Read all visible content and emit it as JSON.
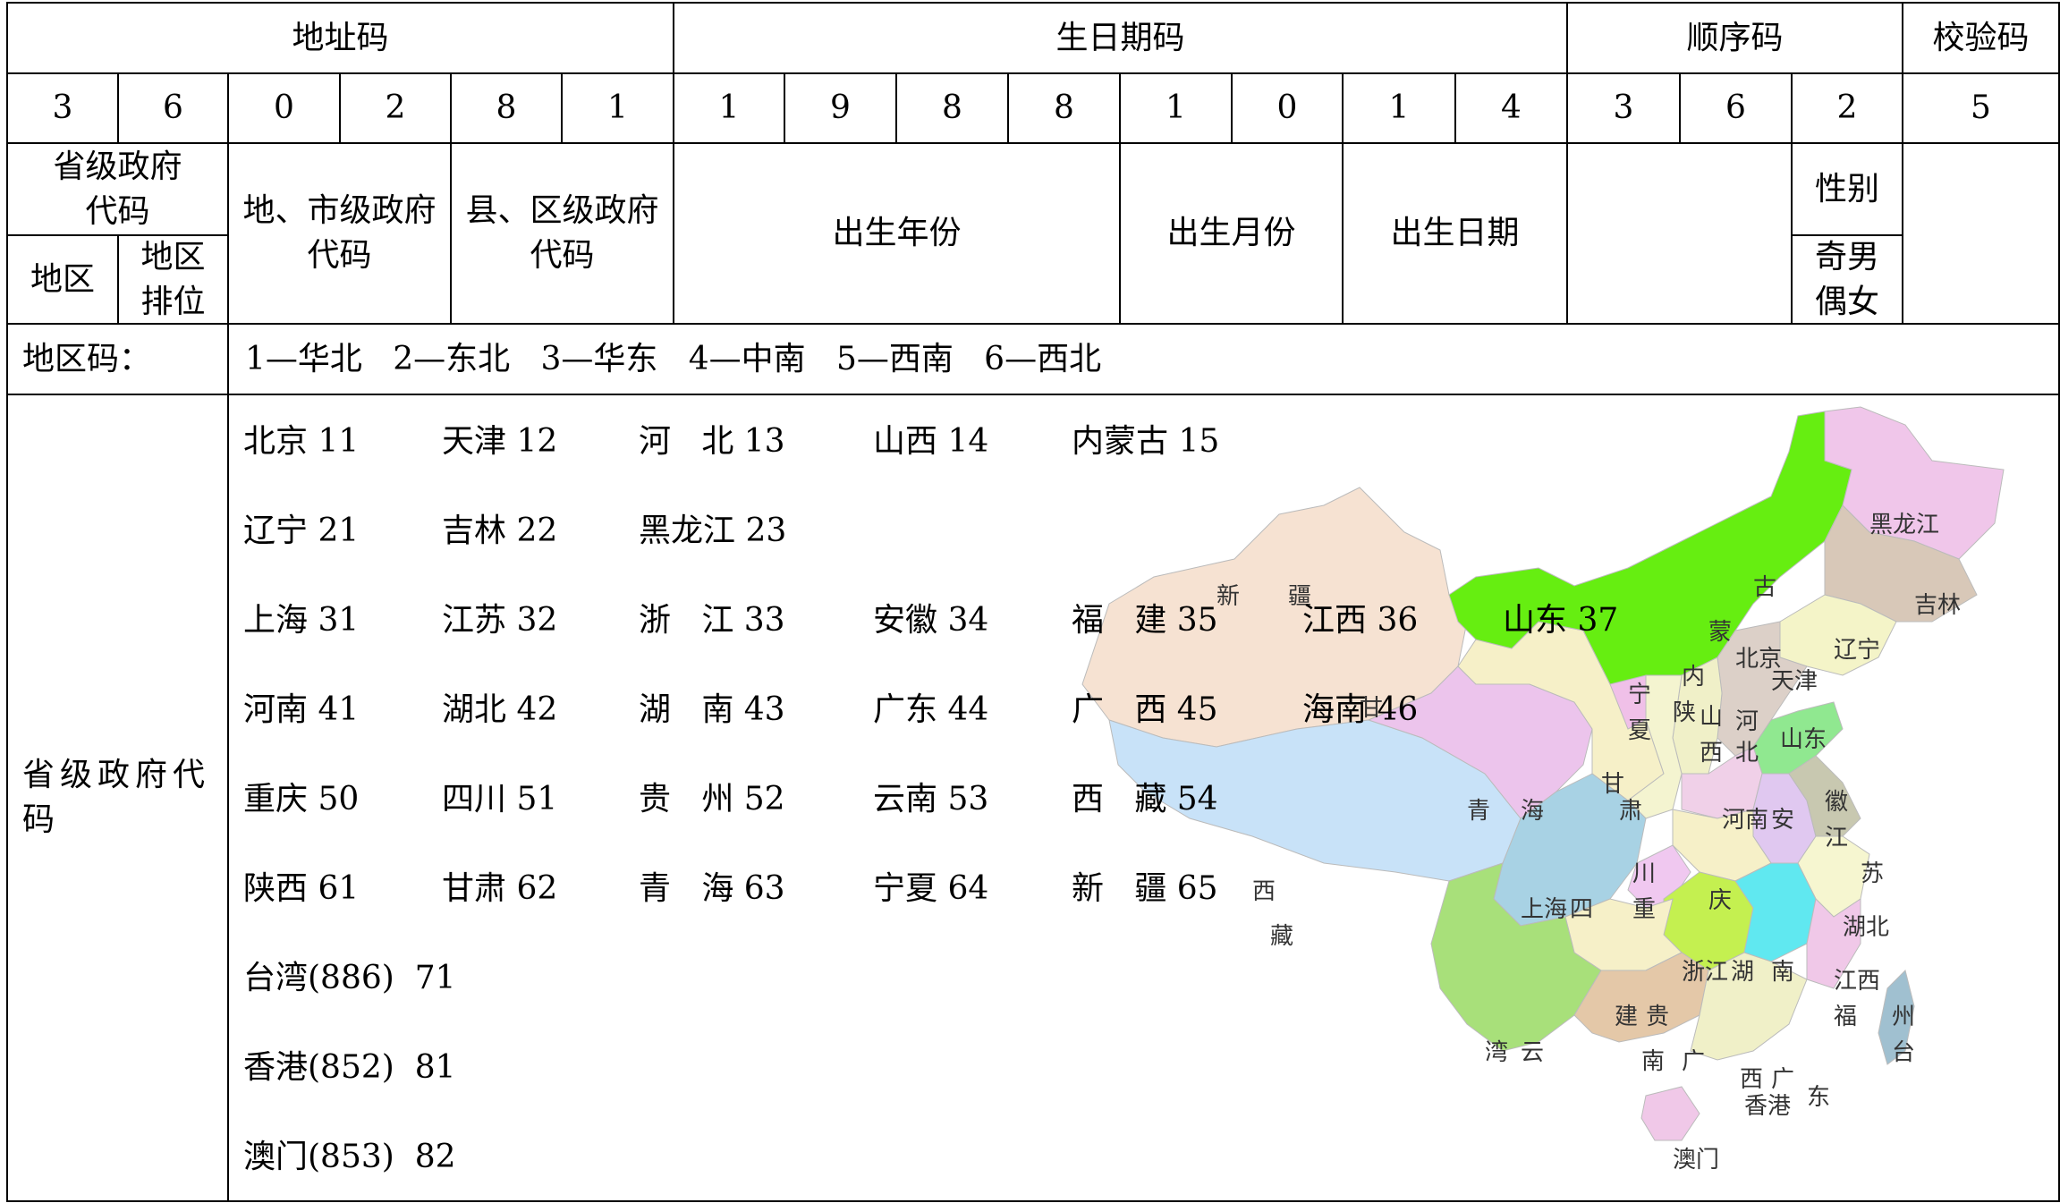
{
  "header": {
    "address_code": "地址码",
    "birth_date_code": "生日期码",
    "sequence_code": "顺序码",
    "check_code": "校验码"
  },
  "digits": [
    "3",
    "6",
    "0",
    "2",
    "8",
    "1",
    "1",
    "9",
    "8",
    "8",
    "1",
    "0",
    "1",
    "4",
    "3",
    "6",
    "2",
    "5"
  ],
  "labels": {
    "province_code": "省级政府\n代码",
    "region": "地区",
    "region_rank": "地区\n排位",
    "city_code": "地、市级政府\n代码",
    "county_code": "县、区级政府\n代码",
    "birth_year": "出生年份",
    "birth_month": "出生月份",
    "birth_day": "出生日期",
    "gender": "性别",
    "odd_even": "奇男\n偶女"
  },
  "region_code": {
    "label": "地区码：",
    "values": "1—华北   2—东北   3—华东   4—中南   5—西南   6—西北"
  },
  "province_section": {
    "label": "省级政府代\n码",
    "rows": [
      [
        "北京 11",
        "天津 12",
        "河   北 13",
        "山西 14",
        "内蒙古 15"
      ],
      [
        "辽宁 21",
        "吉林 22",
        "黑龙江 23"
      ],
      [
        "上海 31",
        "江苏 32",
        "浙   江 33",
        "安徽 34",
        "福   建 35",
        "江西 36",
        "山东 37"
      ],
      [
        "河南 41",
        "湖北 42",
        "湖   南 43",
        "广东 44",
        "广   西 45",
        "海南 46"
      ],
      [
        "重庆 50",
        "四川 51",
        "贵   州 52",
        "云南 53",
        "西   藏 54"
      ],
      [
        "陕西 61",
        "甘肃 62",
        "青   海 63",
        "宁夏 64",
        "新   疆 65"
      ],
      [
        "台湾(886)  71"
      ],
      [
        "香港(852)  81"
      ],
      [
        "澳门(853)  82"
      ]
    ]
  },
  "map": {
    "labels": [
      "黑龙江",
      "吉林",
      "辽宁",
      "内",
      "蒙",
      "古",
      "新",
      "疆",
      "甘",
      "北京",
      "天津",
      "河",
      "北",
      "山",
      "西",
      "山东",
      "宁",
      "夏",
      "陕",
      "青",
      "海",
      "西",
      "藏",
      "甘",
      "肃",
      "河南",
      "安",
      "徽",
      "江",
      "苏",
      "上海",
      "四",
      "川",
      "重",
      "庆",
      "湖北",
      "浙江",
      "湖",
      "南",
      "江西",
      "福",
      "建",
      "贵",
      "州",
      "台",
      "湾",
      "云",
      "南",
      "广",
      "西",
      "广",
      "东",
      "香港",
      "澳门",
      "海南"
    ],
    "colors": {
      "inner_mongolia": "#66ee11",
      "xinjiang": "#f6e2d2",
      "tibet": "#c8e2f8",
      "qinghai": "#ecc4ec",
      "heilongjiang": "#f0c6ea",
      "sichuan": "#a8d2e4",
      "yunnan": "#a8e07a",
      "hunan": "#c4f050",
      "jiangxi": "#60e8f0",
      "shandong": "#90e890",
      "guangxi": "#e4c8a8"
    }
  }
}
